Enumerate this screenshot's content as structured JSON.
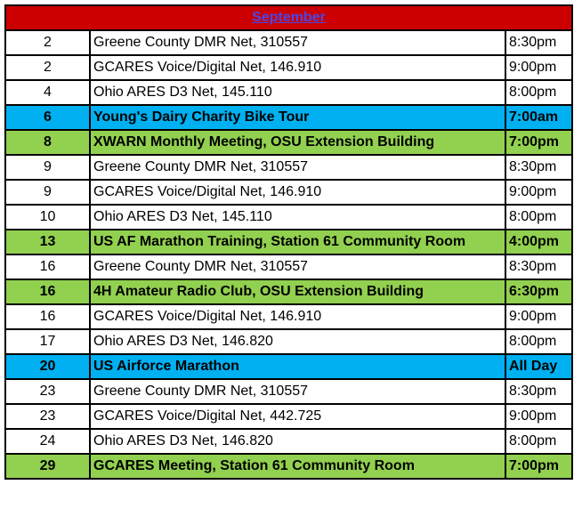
{
  "month": "September",
  "colors": {
    "header_red": "#cc0000",
    "month_link": "#4a47e6",
    "green": "#92d050",
    "blue": "#00b0f0"
  },
  "events": [
    {
      "day": "2",
      "event": "Greene County DMR Net, 310557",
      "time": "8:30pm",
      "highlight": "none"
    },
    {
      "day": "2",
      "event": "GCARES Voice/Digital Net, 146.910",
      "time": "9:00pm",
      "highlight": "none"
    },
    {
      "day": "4",
      "event": "Ohio ARES D3 Net, 145.110",
      "time": "8:00pm",
      "highlight": "none"
    },
    {
      "day": "6",
      "event": "Young's Dairy Charity Bike Tour",
      "time": "7:00am",
      "highlight": "blue"
    },
    {
      "day": "8",
      "event": "XWARN Monthly Meeting, OSU Extension Building",
      "time": "7:00pm",
      "highlight": "green"
    },
    {
      "day": "9",
      "event": "Greene County DMR Net, 310557",
      "time": "8:30pm",
      "highlight": "none"
    },
    {
      "day": "9",
      "event": "GCARES Voice/Digital Net, 146.910",
      "time": "9:00pm",
      "highlight": "none"
    },
    {
      "day": "10",
      "event": "Ohio ARES D3 Net, 145.110",
      "time": "8:00pm",
      "highlight": "none"
    },
    {
      "day": "13",
      "event": "US AF Marathon Training, Station 61 Community Room",
      "time": "4:00pm",
      "highlight": "green"
    },
    {
      "day": "16",
      "event": "Greene County DMR Net, 310557",
      "time": "8:30pm",
      "highlight": "none"
    },
    {
      "day": "16",
      "event": "4H Amateur Radio Club, OSU Extension Building",
      "time": "6:30pm",
      "highlight": "green"
    },
    {
      "day": "16",
      "event": "GCARES Voice/Digital Net, 146.910",
      "time": "9:00pm",
      "highlight": "none"
    },
    {
      "day": "17",
      "event": "Ohio ARES D3 Net, 146.820",
      "time": "8:00pm",
      "highlight": "none"
    },
    {
      "day": "20",
      "event": "US Airforce Marathon",
      "time": "All Day",
      "highlight": "blue"
    },
    {
      "day": "23",
      "event": "Greene County DMR Net, 310557",
      "time": "8:30pm",
      "highlight": "none"
    },
    {
      "day": "23",
      "event": "GCARES Voice/Digital Net, 442.725",
      "time": "9:00pm",
      "highlight": "none"
    },
    {
      "day": "24",
      "event": "Ohio ARES D3 Net, 146.820",
      "time": "8:00pm",
      "highlight": "none"
    },
    {
      "day": "29",
      "event": "GCARES Meeting, Station 61 Community Room",
      "time": "7:00pm",
      "highlight": "green"
    }
  ]
}
